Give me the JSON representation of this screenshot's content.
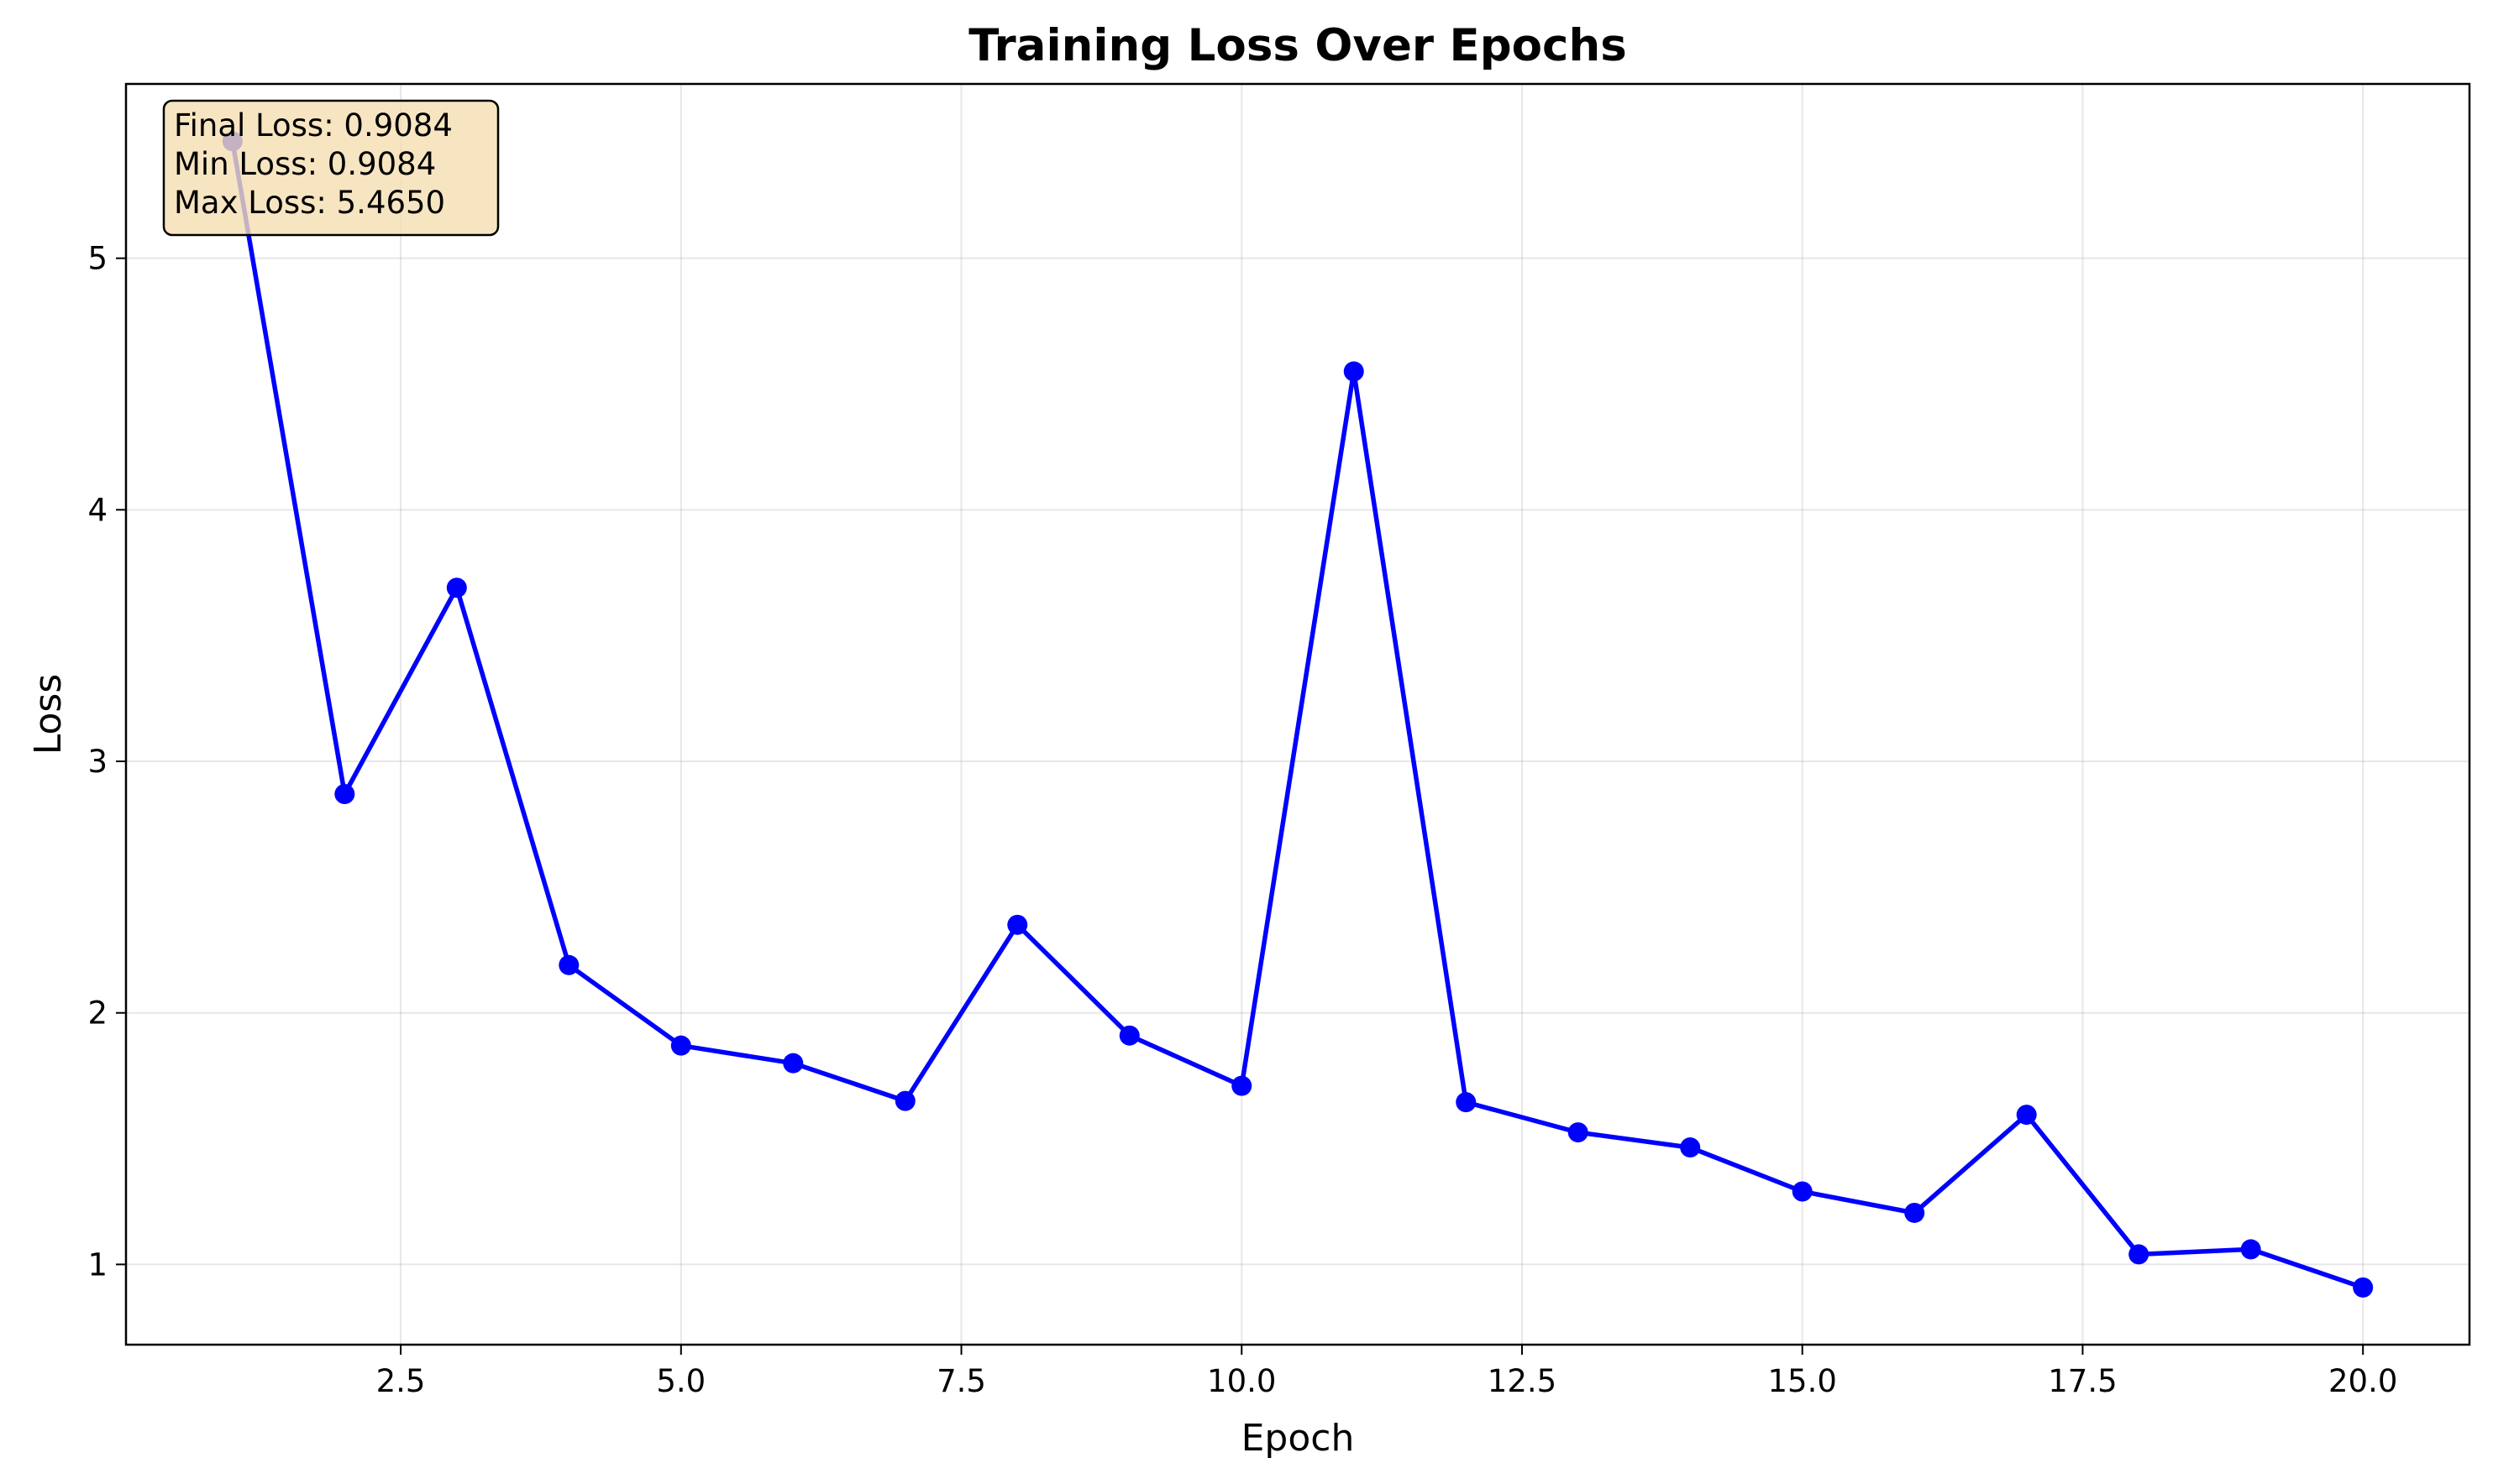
{
  "chart_data": {
    "type": "line",
    "title": "Training Loss Over Epochs",
    "xlabel": "Epoch",
    "ylabel": "Loss",
    "xlim": [
      0.05,
      20.95
    ],
    "ylim": [
      0.681,
      5.693
    ],
    "xticks": [
      2.5,
      5.0,
      7.5,
      10.0,
      12.5,
      15.0,
      17.5,
      20.0
    ],
    "xtick_labels": [
      "2.5",
      "5.0",
      "7.5",
      "10.0",
      "12.5",
      "15.0",
      "17.5",
      "20.0"
    ],
    "yticks": [
      1,
      2,
      3,
      4,
      5
    ],
    "ytick_labels": [
      "1",
      "2",
      "3",
      "4",
      "5"
    ],
    "grid": true,
    "series": [
      {
        "color": "#0000ff",
        "x": [
          1,
          2,
          3,
          4,
          5,
          6,
          7,
          8,
          9,
          10,
          11,
          12,
          13,
          14,
          15,
          16,
          17,
          18,
          19,
          20
        ],
        "values": [
          5.465,
          2.87,
          3.69,
          2.19,
          1.87,
          1.8,
          1.65,
          2.35,
          1.91,
          1.71,
          4.55,
          1.645,
          1.525,
          1.465,
          1.29,
          1.205,
          1.595,
          1.04,
          1.06,
          0.9084
        ]
      }
    ],
    "annotation": {
      "lines": [
        "Final Loss: 0.9084",
        "Min Loss: 0.9084",
        "Max Loss: 5.4650"
      ],
      "placement": "top-left",
      "background": "#f5deb3",
      "border": "#000000"
    }
  }
}
